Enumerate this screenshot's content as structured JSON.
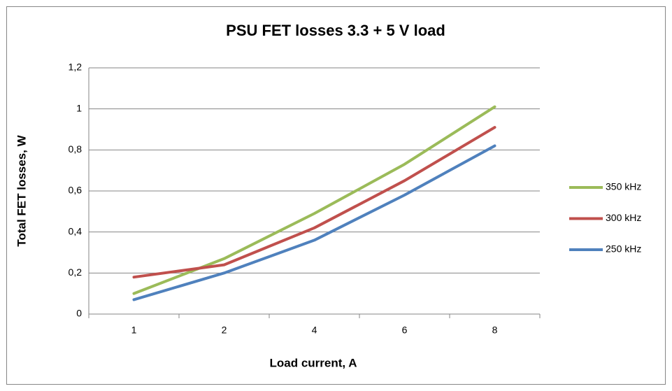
{
  "chart_data": {
    "type": "line",
    "title": "PSU FET losses 3.3 + 5 V load",
    "x_label": "Load current, A",
    "y_label": "Total FET losses, W",
    "categories": [
      "1",
      "2",
      "4",
      "6",
      "8"
    ],
    "series": [
      {
        "name": "350 kHz",
        "color": "#9bbb59",
        "values": [
          0.1,
          0.27,
          0.49,
          0.73,
          1.01
        ]
      },
      {
        "name": "300 kHz",
        "color": "#c0504d",
        "values": [
          0.18,
          0.24,
          0.42,
          0.65,
          0.91
        ]
      },
      {
        "name": "250 kHz",
        "color": "#4f81bd",
        "values": [
          0.07,
          0.2,
          0.36,
          0.58,
          0.82
        ]
      }
    ],
    "ylim": [
      0,
      1.2
    ],
    "yticks": [
      0,
      {
        "value": 0.2,
        "label": "0,2"
      },
      {
        "value": 0.4,
        "label": "0,4"
      },
      {
        "value": 0.6,
        "label": "0,6"
      },
      {
        "value": 0.8,
        "label": "0,8"
      },
      1,
      {
        "value": 1.2,
        "label": "1,2"
      }
    ],
    "grid": true,
    "legend": "right"
  }
}
